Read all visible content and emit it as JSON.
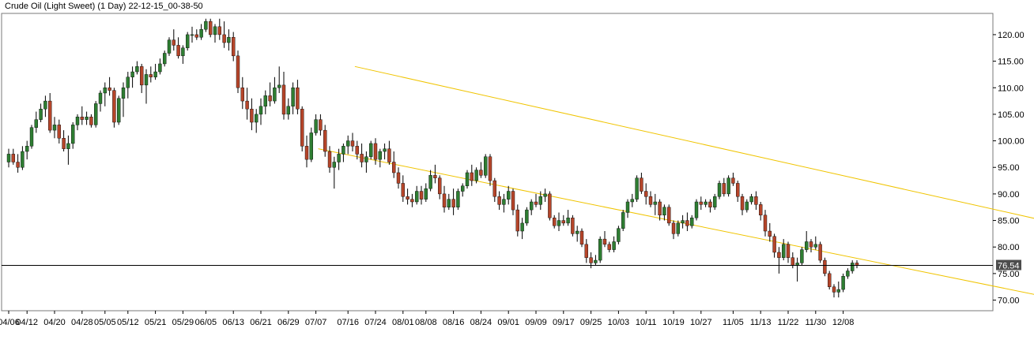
{
  "chart_data": {
    "type": "candlestick",
    "title": "Crude Oil (Light Sweet) (1 Day) 22-12-15_00-38-50",
    "instrument": "Crude Oil (Light Sweet)",
    "timeframe": "1 Day",
    "ylim": [
      68,
      124
    ],
    "yticks": [
      70,
      75,
      80,
      85,
      90,
      95,
      100,
      105,
      110,
      115,
      120
    ],
    "ytick_labels": [
      "70.00",
      "75.00",
      "80.00",
      "85.00",
      "90.00",
      "95.00",
      "100.00",
      "105.00",
      "110.00",
      "115.00",
      "120.00"
    ],
    "xtick_labels": [
      "04/06",
      "04/12",
      "04/20",
      "04/28",
      "05/05",
      "05/12",
      "05/21",
      "05/29",
      "06/05",
      "06/13",
      "06/21",
      "06/29",
      "07/07",
      "07/16",
      "07/24",
      "08/01",
      "08/08",
      "08/16",
      "08/24",
      "09/01",
      "09/09",
      "09/17",
      "09/25",
      "10/03",
      "10/11",
      "10/19",
      "10/27",
      "11/05",
      "11/13",
      "11/22",
      "11/30",
      "12/08"
    ],
    "xtick_index": [
      0,
      4,
      10,
      16,
      21,
      26,
      32,
      38,
      43,
      49,
      55,
      61,
      67,
      74,
      80,
      86,
      91,
      97,
      103,
      109,
      115,
      121,
      127,
      133,
      139,
      145,
      151,
      158,
      164,
      170,
      176,
      182
    ],
    "current_price": 76.54,
    "current_price_label": "76.54",
    "grid": false,
    "candles": [
      [
        96,
        98.5,
        95,
        97.5
      ],
      [
        97.5,
        98.5,
        95.5,
        96
      ],
      [
        96,
        97.5,
        94,
        95
      ],
      [
        95,
        99,
        94.5,
        98
      ],
      [
        98,
        100,
        96.5,
        99
      ],
      [
        99,
        103,
        98.5,
        102.5
      ],
      [
        102.5,
        105.5,
        101.5,
        104
      ],
      [
        104,
        107,
        103.5,
        106
      ],
      [
        106,
        108.5,
        104.5,
        107.5
      ],
      [
        107.5,
        109,
        101.5,
        102
      ],
      [
        102,
        104.5,
        100.5,
        103
      ],
      [
        103,
        104,
        99.5,
        100.5
      ],
      [
        100.5,
        102,
        98,
        98.5
      ],
      [
        98.5,
        101,
        95.5,
        99.5
      ],
      [
        99.5,
        103.5,
        98.5,
        103
      ],
      [
        103,
        105,
        102,
        104.5
      ],
      [
        104.5,
        106.5,
        103,
        104
      ],
      [
        104,
        105.5,
        103,
        104.5
      ],
      [
        104.5,
        105,
        102.5,
        103
      ],
      [
        103,
        107.5,
        102.5,
        107
      ],
      [
        107,
        109.5,
        105.5,
        109
      ],
      [
        109,
        111,
        106.5,
        110
      ],
      [
        110,
        112,
        108.5,
        109.5
      ],
      [
        109.5,
        110,
        102.5,
        103.5
      ],
      [
        103.5,
        108.5,
        103,
        108
      ],
      [
        108,
        111,
        104.5,
        110
      ],
      [
        110,
        113,
        108,
        112
      ],
      [
        112,
        114,
        110,
        113
      ],
      [
        113,
        115,
        112.5,
        114
      ],
      [
        114,
        114.5,
        109,
        110.5
      ],
      [
        110.5,
        113.5,
        107,
        112.5
      ],
      [
        112.5,
        114,
        111,
        112
      ],
      [
        112,
        114.5,
        111.5,
        113
      ],
      [
        113,
        115.5,
        112.5,
        114.5
      ],
      [
        114.5,
        117,
        114,
        116.5
      ],
      [
        116.5,
        119.5,
        116,
        119
      ],
      [
        119,
        121,
        117,
        118
      ],
      [
        118,
        119.5,
        115.5,
        116
      ],
      [
        116,
        118,
        114.5,
        117.5
      ],
      [
        117.5,
        120.5,
        117,
        120
      ],
      [
        120,
        121.5,
        118.5,
        120
      ],
      [
        120,
        121,
        119,
        119.5
      ],
      [
        119.5,
        122,
        119,
        121
      ],
      [
        121,
        123,
        120.5,
        122.5
      ],
      [
        122.5,
        123,
        119.5,
        120
      ],
      [
        120,
        122,
        118.5,
        121.5
      ],
      [
        121.5,
        123,
        119,
        120
      ],
      [
        120,
        122.5,
        117.5,
        118.5
      ],
      [
        118.5,
        121,
        117,
        119.5
      ],
      [
        119.5,
        120.5,
        115,
        116
      ],
      [
        116,
        117,
        109,
        110
      ],
      [
        110,
        112,
        106,
        107.5
      ],
      [
        107.5,
        110,
        104,
        106
      ],
      [
        106,
        108,
        102,
        103.5
      ],
      [
        103.5,
        106,
        101.5,
        105
      ],
      [
        105,
        108,
        103,
        106.5
      ],
      [
        106.5,
        109.5,
        105,
        108.5
      ],
      [
        108.5,
        111,
        106.5,
        107.5
      ],
      [
        107.5,
        112,
        107,
        110
      ],
      [
        110,
        114,
        109,
        110.5
      ],
      [
        110.5,
        113,
        104,
        105
      ],
      [
        105,
        108,
        104,
        106.5
      ],
      [
        106.5,
        111,
        105,
        110
      ],
      [
        110,
        111.5,
        105,
        106
      ],
      [
        106,
        106.5,
        98,
        99
      ],
      [
        99,
        101,
        95,
        96.5
      ],
      [
        96.5,
        102.5,
        96,
        101.5
      ],
      [
        101.5,
        105,
        101,
        104
      ],
      [
        104,
        105,
        101,
        102
      ],
      [
        102,
        103,
        97,
        98
      ],
      [
        98,
        99,
        94,
        95
      ],
      [
        95,
        97,
        91,
        96
      ],
      [
        96,
        98.5,
        94.5,
        97.5
      ],
      [
        97.5,
        99.5,
        96,
        99
      ],
      [
        99,
        101,
        97.5,
        100
      ],
      [
        100,
        101.5,
        98,
        99
      ],
      [
        99,
        100,
        96.5,
        97.5
      ],
      [
        97.5,
        99.5,
        95,
        96
      ],
      [
        96,
        98,
        94,
        97
      ],
      [
        97,
        100,
        96.5,
        99.5
      ],
      [
        99.5,
        100.5,
        95.5,
        96.5
      ],
      [
        96.5,
        98.5,
        95,
        98
      ],
      [
        98,
        99.5,
        96.5,
        98.5
      ],
      [
        98.5,
        100,
        95.5,
        96
      ],
      [
        96,
        98,
        93,
        94
      ],
      [
        94,
        95,
        91,
        92
      ],
      [
        92,
        93.5,
        88.5,
        89.5
      ],
      [
        89.5,
        91,
        88,
        89
      ],
      [
        89,
        90,
        87.5,
        88.5
      ],
      [
        88.5,
        91.5,
        88,
        90.5
      ],
      [
        90.5,
        91.5,
        88,
        89
      ],
      [
        89,
        92,
        88.5,
        91
      ],
      [
        91,
        94.5,
        90.5,
        93.5
      ],
      [
        93.5,
        95.5,
        92,
        93
      ],
      [
        93,
        93.5,
        89,
        90
      ],
      [
        90,
        91.5,
        86.5,
        87.5
      ],
      [
        87.5,
        90,
        87,
        89
      ],
      [
        89,
        91,
        86,
        87.5
      ],
      [
        87.5,
        91,
        87,
        90.5
      ],
      [
        90.5,
        92,
        89.5,
        91.5
      ],
      [
        91.5,
        94.5,
        91,
        94
      ],
      [
        94,
        95.5,
        91.5,
        92.5
      ],
      [
        92.5,
        95,
        92,
        94.5
      ],
      [
        94.5,
        96,
        93,
        93.5
      ],
      [
        93.5,
        97.5,
        93,
        97
      ],
      [
        97,
        97.5,
        91.5,
        92.5
      ],
      [
        92.5,
        93,
        88.5,
        89.5
      ],
      [
        89.5,
        90.5,
        87,
        88
      ],
      [
        88,
        90,
        86.5,
        89
      ],
      [
        89,
        91.5,
        88,
        90.5
      ],
      [
        90.5,
        91,
        86,
        87
      ],
      [
        87,
        88,
        82,
        83
      ],
      [
        83,
        85.5,
        81.5,
        84.5
      ],
      [
        84.5,
        87.5,
        84,
        87
      ],
      [
        87,
        89,
        86,
        88.5
      ],
      [
        88.5,
        90,
        87.5,
        88
      ],
      [
        88,
        90.5,
        87,
        89.5
      ],
      [
        89.5,
        91,
        88.5,
        90
      ],
      [
        90,
        90.5,
        85,
        85.5
      ],
      [
        85.5,
        86,
        83.5,
        84
      ],
      [
        84,
        86.5,
        83,
        85
      ],
      [
        85,
        86,
        84,
        84.5
      ],
      [
        84.5,
        87,
        84,
        85.5
      ],
      [
        85.5,
        86,
        82,
        82.5
      ],
      [
        82.5,
        84,
        81,
        83
      ],
      [
        83,
        83.5,
        80,
        80.5
      ],
      [
        80.5,
        81.5,
        77,
        78
      ],
      [
        78,
        79,
        76,
        77
      ],
      [
        77,
        78.5,
        76.5,
        77.5
      ],
      [
        77.5,
        82,
        77,
        81.5
      ],
      [
        81.5,
        83,
        80,
        80.5
      ],
      [
        80.5,
        81,
        79,
        79.5
      ],
      [
        79.5,
        82,
        79,
        81
      ],
      [
        81,
        84,
        80.5,
        83.5
      ],
      [
        83.5,
        87,
        83,
        86.5
      ],
      [
        86.5,
        89,
        85.5,
        88.5
      ],
      [
        88.5,
        90,
        87.5,
        89
      ],
      [
        89,
        93.5,
        88.5,
        93
      ],
      [
        93,
        94,
        90,
        90.5
      ],
      [
        90.5,
        92,
        88,
        89.5
      ],
      [
        89.5,
        90.5,
        87.5,
        88
      ],
      [
        88,
        90,
        86,
        88.5
      ],
      [
        88.5,
        89,
        85,
        86
      ],
      [
        86,
        88,
        85,
        87.5
      ],
      [
        87.5,
        88,
        84,
        84.5
      ],
      [
        84.5,
        85,
        81.5,
        82.5
      ],
      [
        82.5,
        85,
        82,
        84.5
      ],
      [
        84.5,
        86,
        83.5,
        85
      ],
      [
        85,
        86.5,
        83,
        84
      ],
      [
        84,
        86,
        83.5,
        85.5
      ],
      [
        85.5,
        89,
        85,
        88.5
      ],
      [
        88.5,
        89.5,
        87,
        88
      ],
      [
        88,
        89,
        87.5,
        88.5
      ],
      [
        88.5,
        89,
        86.5,
        87.5
      ],
      [
        87.5,
        90,
        87,
        89.5
      ],
      [
        89.5,
        92.5,
        89,
        92
      ],
      [
        92,
        93,
        89.5,
        90
      ],
      [
        90,
        93.5,
        89.5,
        93
      ],
      [
        93,
        94,
        91.5,
        92
      ],
      [
        92,
        92.5,
        88.5,
        89.5
      ],
      [
        89.5,
        90,
        86,
        87
      ],
      [
        87,
        89,
        86.5,
        88.5
      ],
      [
        88.5,
        90,
        88,
        89.5
      ],
      [
        89.5,
        90.5,
        87,
        88
      ],
      [
        88,
        88.5,
        85,
        86
      ],
      [
        86,
        87,
        82,
        83
      ],
      [
        83,
        84.5,
        81,
        82
      ],
      [
        82,
        82.5,
        78,
        79
      ],
      [
        79,
        80,
        75,
        78
      ],
      [
        78,
        81.5,
        77.5,
        80.5
      ],
      [
        80.5,
        81,
        77,
        78
      ],
      [
        78,
        79,
        76,
        76.5
      ],
      [
        76.5,
        78,
        73.5,
        77
      ],
      [
        77,
        80,
        76.5,
        79.5
      ],
      [
        79.5,
        83,
        79,
        81
      ],
      [
        81,
        81.5,
        79,
        80
      ],
      [
        80,
        82,
        79.5,
        80.5
      ],
      [
        80.5,
        81,
        77,
        77.5
      ],
      [
        77.5,
        78,
        74.5,
        75
      ],
      [
        75,
        75.5,
        72,
        72.5
      ],
      [
        72.5,
        73,
        70.5,
        71.5
      ],
      [
        71.5,
        73.5,
        70.5,
        72
      ],
      [
        72,
        75,
        71.5,
        74.5
      ],
      [
        74.5,
        76,
        74,
        75.5
      ],
      [
        75.5,
        77.5,
        75,
        77
      ],
      [
        77,
        77.5,
        76,
        76.5
      ]
    ],
    "channel": [
      {
        "name": "upper",
        "x": [
          75.5,
          233.5
        ],
        "y": [
          114,
          83.5
        ],
        "color": "#f0c400"
      },
      {
        "name": "lower",
        "x": [
          67.5,
          235.5
        ],
        "y": [
          98.5,
          69
        ],
        "color": "#f0c400"
      }
    ],
    "colors": {
      "up_body": "#2e7d32",
      "down_body": "#b5452a",
      "wick": "#000000",
      "channel": "#f0c400",
      "price_line": "#000000",
      "price_box_bg": "#4d4d4d",
      "price_box_text": "#ffffff"
    }
  }
}
